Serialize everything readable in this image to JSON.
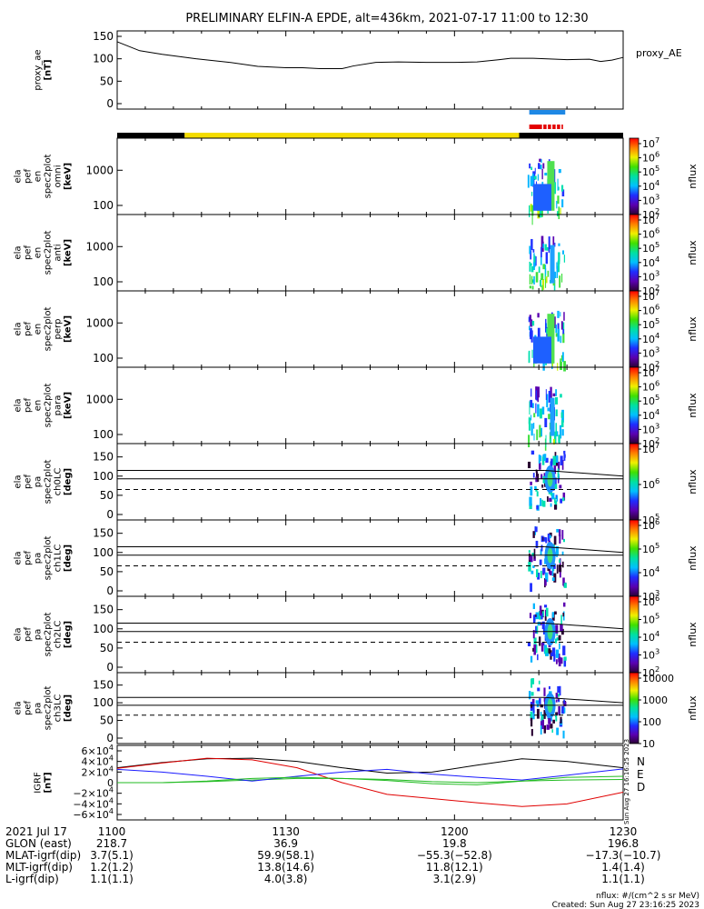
{
  "title": "PRELIMINARY ELFIN-A EPDE, alt=436km, 2021-07-17 11:00 to 12:30",
  "colors": {
    "segment_black": "#000000",
    "segment_yellow": "#f4dc00",
    "bar_blue": "#1e88e5",
    "bar_red": "#e30000",
    "igrf_N": "#1a1aff",
    "igrf_E": "#22bb22",
    "igrf_D": "#e00000"
  },
  "chart_data": [
    {
      "type": "line",
      "panel": "proxy_ae",
      "ylabel": [
        "proxy_ae",
        "[nT]"
      ],
      "legend": "proxy_AE",
      "ylim": [
        0,
        150
      ],
      "yticks": [
        0,
        50,
        100,
        150
      ],
      "x_minutes": [
        0,
        4,
        8,
        14,
        20,
        25,
        30,
        33,
        36,
        40,
        42,
        46,
        50,
        55,
        60,
        64,
        68,
        70,
        74,
        80,
        84,
        86,
        88,
        90
      ],
      "values": [
        138,
        118,
        110,
        100,
        92,
        83,
        80,
        80,
        78,
        78,
        84,
        92,
        93,
        92,
        92,
        93,
        98,
        101,
        101,
        98,
        99,
        94,
        97,
        103
      ]
    },
    {
      "type": "bar",
      "panel": "orbit_segments",
      "segments": [
        {
          "from_min": 0,
          "to_min": 12,
          "color": "black"
        },
        {
          "from_min": 12,
          "to_min": 71.5,
          "color": "yellow"
        },
        {
          "from_min": 71.5,
          "to_min": 90,
          "color": "black"
        }
      ],
      "blue_bar": {
        "from_min": 73.3,
        "to_min": 79.7
      },
      "red_bar": {
        "from_min": 73.3,
        "to_min": 79.3
      }
    },
    {
      "type": "heatmap",
      "panel": "en_omni",
      "ylabel": [
        "ela",
        "pef",
        "en",
        "spec2plot",
        "omni",
        "[keV]"
      ],
      "scale": "log",
      "yticks": [
        "100",
        "1000"
      ],
      "colorbar_label": "nflux",
      "colorbar_ticks": [
        "10^7",
        "10^6",
        "10^5",
        "10^4",
        "10^3",
        "10^2"
      ]
    },
    {
      "type": "heatmap",
      "panel": "en_anti",
      "ylabel": [
        "ela",
        "pef",
        "en",
        "spec2plot",
        "anti",
        "[keV]"
      ],
      "scale": "log",
      "yticks": [
        "100",
        "1000"
      ],
      "colorbar_label": "nflux",
      "colorbar_ticks": [
        "10^7",
        "10^6",
        "10^5",
        "10^4",
        "10^3",
        "10^2"
      ]
    },
    {
      "type": "heatmap",
      "panel": "en_perp",
      "ylabel": [
        "ela",
        "pef",
        "en",
        "spec2plot",
        "perp",
        "[keV]"
      ],
      "scale": "log",
      "yticks": [
        "100",
        "1000"
      ],
      "colorbar_label": "nflux",
      "colorbar_ticks": [
        "10^7",
        "10^6",
        "10^5",
        "10^4",
        "10^3",
        "10^2"
      ]
    },
    {
      "type": "heatmap",
      "panel": "en_para",
      "ylabel": [
        "ela",
        "pef",
        "en",
        "spec2plot",
        "para",
        "[keV]"
      ],
      "scale": "log",
      "yticks": [
        "100",
        "1000"
      ],
      "colorbar_label": "nflux",
      "colorbar_ticks": [
        "10^7",
        "10^6",
        "10^5",
        "10^4",
        "10^3",
        "10^2"
      ]
    },
    {
      "type": "heatmap",
      "panel": "pa_ch0LC",
      "ylabel": [
        "ela",
        "pef",
        "pa",
        "spec2plot",
        "ch0LC",
        "[deg]"
      ],
      "ylim": [
        0,
        180
      ],
      "yticks": [
        0,
        50,
        100,
        150
      ],
      "colorbar_label": "nflux",
      "colorbar_ticks": [
        "10^7",
        "10^6",
        "10^5"
      ]
    },
    {
      "type": "heatmap",
      "panel": "pa_ch1LC",
      "ylabel": [
        "ela",
        "pef",
        "pa",
        "spec2plot",
        "ch1LC",
        "[deg]"
      ],
      "ylim": [
        0,
        180
      ],
      "yticks": [
        0,
        50,
        100,
        150
      ],
      "colorbar_label": "nflux",
      "colorbar_ticks": [
        "10^6",
        "10^5",
        "10^4",
        "10^3"
      ]
    },
    {
      "type": "heatmap",
      "panel": "pa_ch2LC",
      "ylabel": [
        "ela",
        "pef",
        "pa",
        "spec2plot",
        "ch2LC",
        "[deg]"
      ],
      "ylim": [
        0,
        180
      ],
      "yticks": [
        0,
        50,
        100,
        150
      ],
      "colorbar_label": "nflux",
      "colorbar_ticks": [
        "10^6",
        "10^5",
        "10^4",
        "10^3",
        "10^2"
      ]
    },
    {
      "type": "heatmap",
      "panel": "pa_ch3LC",
      "ylabel": [
        "ela",
        "pef",
        "pa",
        "spec2plot",
        "ch3LC",
        "[deg]"
      ],
      "ylim": [
        0,
        180
      ],
      "yticks": [
        0,
        50,
        100,
        150
      ],
      "colorbar_label": "nflux",
      "colorbar_ticks": [
        "10000",
        "1000",
        "100",
        "10"
      ]
    },
    {
      "type": "line",
      "panel": "igrf",
      "ylabel": [
        "IGRF",
        "[nT]"
      ],
      "ylim": [
        -60000,
        60000
      ],
      "yticks": [
        "6×10^4",
        "4×10^4",
        "2×10^4",
        "0",
        "−2×10^4",
        "−4×10^4",
        "−6×10^4"
      ],
      "x_minutes": [
        0,
        8,
        16,
        24,
        32,
        40,
        48,
        56,
        64,
        72,
        80,
        90
      ],
      "series": [
        {
          "name": "N",
          "values": [
            28000,
            38000,
            45000,
            46000,
            40000,
            28000,
            18000,
            20000,
            33000,
            45000,
            40000,
            28000
          ]
        },
        {
          "name": "E",
          "values": [
            0,
            0,
            2000,
            5000,
            8000,
            8000,
            6000,
            2000,
            0,
            3000,
            5000,
            6000
          ]
        },
        {
          "name": "D",
          "values": [
            27000,
            37000,
            46000,
            43000,
            28000,
            0,
            -22000,
            -30000,
            -38000,
            -45000,
            -40000,
            -18000
          ]
        }
      ],
      "extra_series": [
        {
          "values": [
            25000,
            20000,
            12000,
            3000,
            12000,
            20000,
            25000,
            16000,
            10000,
            5000,
            14000,
            26000
          ]
        },
        {
          "values": [
            0,
            0,
            3000,
            8000,
            10000,
            8000,
            4000,
            -2000,
            -4000,
            3000,
            10000,
            12000
          ]
        }
      ]
    }
  ],
  "pa_reference_lines": {
    "solid_upper": 115,
    "solid_lower": 93,
    "dashed": 65,
    "trend_end": 100
  },
  "igrf_legend": [
    "N",
    "E",
    "D"
  ],
  "xaxis": {
    "ticks": [
      "1100",
      "1130",
      "1200",
      "1230"
    ],
    "tick_minutes": [
      0,
      30,
      60,
      90
    ]
  },
  "ephemeris": {
    "rows": [
      {
        "label": "2021 Jul 17",
        "values": [
          "1100",
          "1130",
          "1200",
          "1230"
        ]
      },
      {
        "label": "GLON (east)",
        "values": [
          "218.7",
          "36.9",
          "19.8",
          "196.8"
        ]
      },
      {
        "label": "MLAT-igrf(dip)",
        "values": [
          "3.7(5.1)",
          "59.9(58.1)",
          "−55.3(−52.8)",
          "−17.3(−10.7)"
        ]
      },
      {
        "label": "MLT-igrf(dip)",
        "values": [
          "1.2(1.2)",
          "13.8(14.6)",
          "11.8(12.1)",
          "1.4(1.4)"
        ]
      },
      {
        "label": "L-igrf(dip)",
        "values": [
          "1.1(1.1)",
          "4.0(3.8)",
          "3.1(2.9)",
          "1.1(1.1)"
        ]
      }
    ]
  },
  "footer": {
    "units": "nflux: #/(cm^2 s sr MeV)",
    "created": "Created: Sun Aug 27 23:16:25 2023",
    "side_stamp": "Sun Aug 27 16:16:25 2023"
  }
}
